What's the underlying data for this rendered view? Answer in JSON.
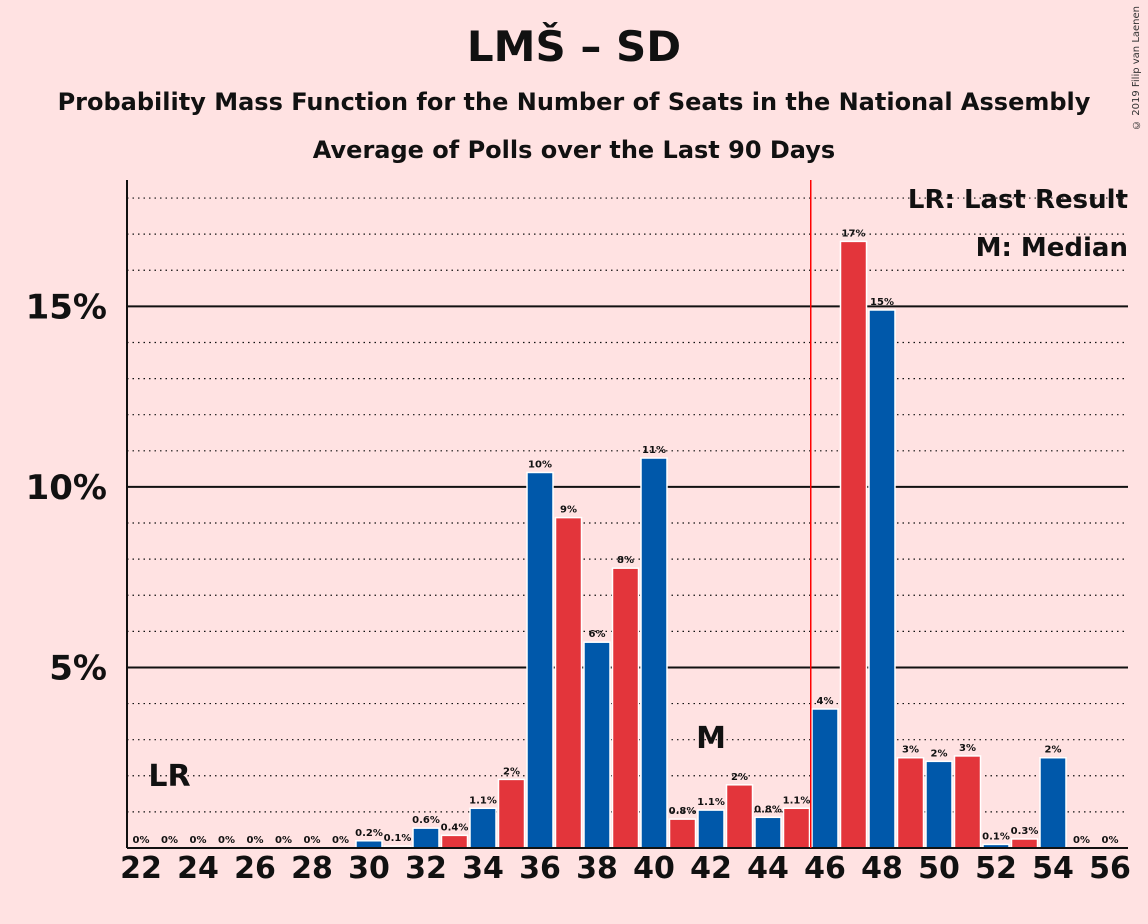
{
  "title": "LMŠ – SD",
  "subtitle1": "Probability Mass Function for the Number of Seats in the National Assembly",
  "subtitle2": "Average of Polls over the Last 90 Days",
  "copyright": "© 2019 Filip van Laenen",
  "legend": {
    "lr": "LR: Last Result",
    "m": "M: Median"
  },
  "colors": {
    "blue": "#0058aa",
    "red": "#e3353b",
    "background": "#ffe2e2",
    "majority_line": "#ff0000"
  },
  "chart_data": {
    "type": "bar",
    "x": [
      22,
      23,
      24,
      25,
      26,
      27,
      28,
      29,
      30,
      31,
      32,
      33,
      34,
      35,
      36,
      37,
      38,
      39,
      40,
      41,
      42,
      43,
      44,
      45,
      46,
      47,
      48,
      49,
      50,
      51,
      52,
      53,
      54,
      55,
      56
    ],
    "values": [
      0,
      0,
      0,
      0,
      0,
      0,
      0,
      0,
      0.2,
      0.05,
      0.55,
      0.35,
      1.1,
      1.9,
      10.4,
      9.15,
      5.7,
      7.75,
      10.8,
      0.8,
      1.05,
      1.75,
      0.85,
      1.1,
      3.85,
      16.8,
      14.9,
      2.5,
      2.4,
      2.55,
      0.1,
      0.25,
      2.5,
      0,
      0
    ],
    "data_labels": [
      "0%",
      "0%",
      "0%",
      "0%",
      "0%",
      "0%",
      "0%",
      "0%",
      "0.2%",
      "0.1%",
      "0.6%",
      "0.4%",
      "1.1%",
      "2%",
      "10%",
      "9%",
      "6%",
      "8%",
      "11%",
      "0.8%",
      "1.1%",
      "2%",
      "0.8%",
      "1.1%",
      "4%",
      "17%",
      "15%",
      "3%",
      "2%",
      "3%",
      "0.1%",
      "0.3%",
      "2%",
      "0%",
      "0%"
    ],
    "x_tick_labels": [
      "22",
      "24",
      "26",
      "28",
      "30",
      "32",
      "34",
      "36",
      "38",
      "40",
      "42",
      "44",
      "46",
      "48",
      "50",
      "52",
      "54",
      "56"
    ],
    "y_tick_labels": [
      "5%",
      "10%",
      "15%"
    ],
    "y_ticks": [
      5,
      10,
      15
    ],
    "ylim": [
      0,
      18.5
    ],
    "last_result": 23,
    "last_result_label": "LR",
    "median": 42,
    "median_label": "M",
    "majority_line": 45.5,
    "grid": true
  }
}
